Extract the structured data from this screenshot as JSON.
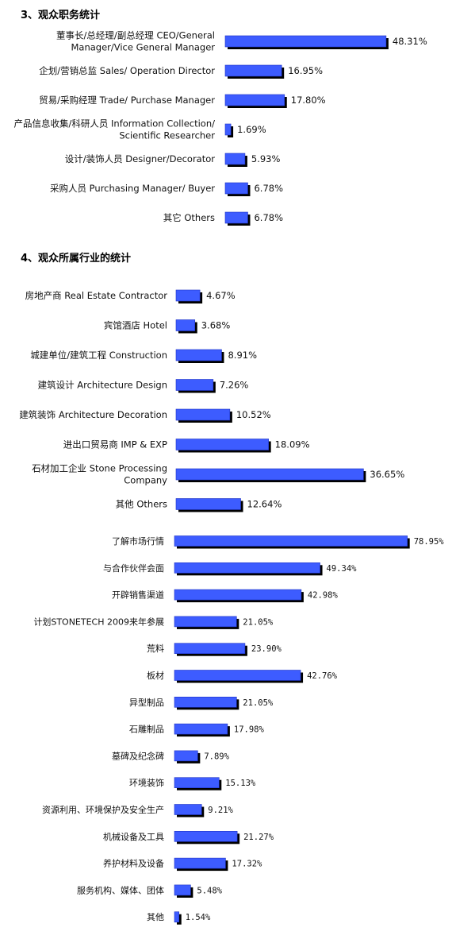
{
  "colors": {
    "bar": "#3d5cff",
    "bar_stroke": "#1f33c4",
    "shadow": "#000000"
  },
  "chart_data": [
    {
      "type": "bar",
      "orientation": "horizontal",
      "title": "3、观众职务统计",
      "categories": [
        "董事长/总经理/副总经理 CEO/General\nManager/Vice General Manager",
        "企划/营销总监 Sales/ Operation Director",
        "贸易/采购经理 Trade/  Purchase Manager",
        "产品信息收集/科研人员  Information Collection/\nScientific Researcher",
        "设计/装饰人员 Designer/Decorator",
        "采购人员 Purchasing Manager/  Buyer",
        "其它 Others"
      ],
      "values": [
        48.31,
        16.95,
        17.8,
        1.69,
        5.93,
        6.78,
        6.78
      ],
      "value_labels": [
        "48.31%",
        "16.95%",
        "17.80%",
        "1.69%",
        "5.93%",
        "6.78%",
        "6.78%"
      ]
    },
    {
      "type": "bar",
      "orientation": "horizontal",
      "title": "4、观众所属行业的统计",
      "categories": [
        "房地产商 Real Estate Contractor",
        "宾馆酒店 Hotel",
        "城建单位/建筑工程 Construction",
        "建筑设计 Architecture Design",
        "建筑装饰 Architecture Decoration",
        "进出口贸易商  IMP & EXP",
        "石材加工企业 Stone Processing\nCompany",
        "其他 Others"
      ],
      "values": [
        4.67,
        3.68,
        8.91,
        7.26,
        10.52,
        18.09,
        36.65,
        12.64
      ],
      "value_labels": [
        "4.67%",
        "3.68%",
        "8.91%",
        "7.26%",
        "10.52%",
        "18.09%",
        "36.65%",
        "12.64%"
      ]
    },
    {
      "type": "bar",
      "orientation": "horizontal",
      "title": "",
      "categories": [
        "了解市场行情",
        "与合作伙伴会面",
        "开辟销售渠道",
        "计划STONETECH 2009来年参展",
        "荒料",
        "板材",
        "异型制品",
        "石雕制品",
        "墓碑及纪念碑",
        "环境装饰",
        "资源利用、环境保护及安全生产",
        "机械设备及工具",
        "养护材料及设备",
        "服务机构、媒体、团体",
        "其他"
      ],
      "values": [
        78.95,
        49.34,
        42.98,
        21.05,
        23.9,
        42.76,
        21.05,
        17.98,
        7.89,
        15.13,
        9.21,
        21.27,
        17.32,
        5.48,
        1.54
      ],
      "value_labels": [
        "78.95%",
        "49.34%",
        "42.98%",
        "21.05%",
        "23.90%",
        "42.76%",
        "21.05%",
        "17.98%",
        "7.89%",
        "15.13%",
        "9.21%",
        "21.27%",
        "17.32%",
        "5.48%",
        "1.54%"
      ]
    }
  ]
}
